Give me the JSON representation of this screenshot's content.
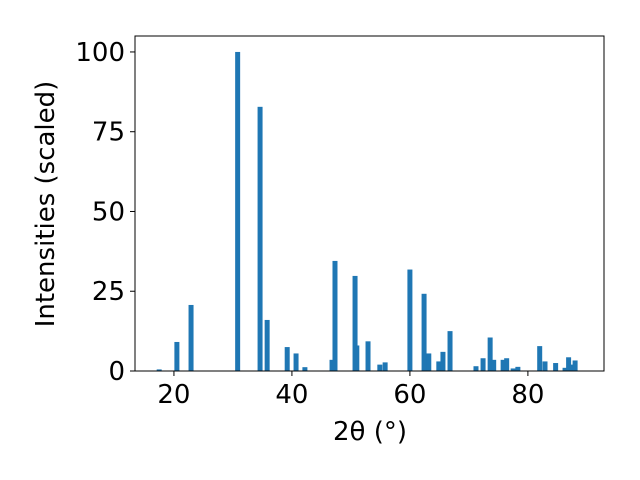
{
  "chart_data": {
    "type": "bar",
    "xlabel": "2θ (°)",
    "ylabel": "Intensities (scaled)",
    "x": [
      17.5,
      20.5,
      22.9,
      30.8,
      34.6,
      35.8,
      39.2,
      40.7,
      42.2,
      46.8,
      47.3,
      50.7,
      51.0,
      52.9,
      54.9,
      55.8,
      60.0,
      62.4,
      63.2,
      64.9,
      65.6,
      66.8,
      71.2,
      72.4,
      73.6,
      74.2,
      75.8,
      76.4,
      77.5,
      78.3,
      82.0,
      82.9,
      84.7,
      86.3,
      86.9,
      87.5,
      88.0
    ],
    "values": [
      0.5,
      9.1,
      20.7,
      100,
      82.8,
      16,
      7.5,
      5.5,
      1.2,
      3.5,
      34.5,
      29.8,
      8,
      9.3,
      2.0,
      2.7,
      31.8,
      24.2,
      5.5,
      3,
      6,
      12.5,
      1.5,
      4,
      10.5,
      3.5,
      3.5,
      4,
      0.8,
      1.3,
      7.8,
      3,
      2.5,
      1,
      4.3,
      2,
      3.3
    ],
    "color": "#1f77b4",
    "xlim": [
      13.4,
      92.9
    ],
    "ylim": [
      0,
      105
    ],
    "xticks": [
      20,
      40,
      60,
      80
    ],
    "yticks": [
      0,
      25,
      50,
      75,
      100
    ],
    "grid": false
  }
}
